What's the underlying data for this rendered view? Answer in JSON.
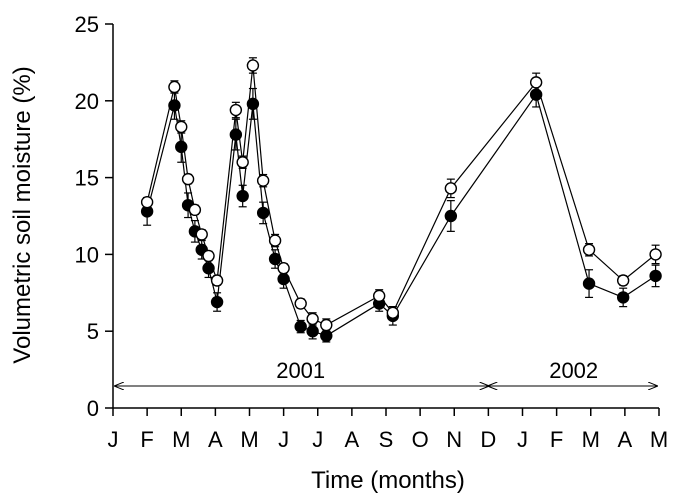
{
  "chart_data": {
    "type": "line",
    "title": "",
    "xlabel": "Time (months)",
    "ylabel": "Volumetric soil moisture (%)",
    "ylim": [
      0,
      25
    ],
    "yticks": [
      0,
      5,
      10,
      15,
      20,
      25
    ],
    "month_ticks": [
      "J",
      "F",
      "M",
      "A",
      "M",
      "J",
      "J",
      "A",
      "S",
      "O",
      "N",
      "D",
      "J",
      "F",
      "M",
      "A",
      "M"
    ],
    "year_labels": [
      "2001",
      "2002"
    ],
    "series": [
      {
        "marker": "open-circle",
        "points": [
          {
            "x": 1.0,
            "y": 13.4,
            "err": 0.3
          },
          {
            "x": 1.8,
            "y": 20.9,
            "err": 0.4
          },
          {
            "x": 2.0,
            "y": 18.3,
            "err": 0.4
          },
          {
            "x": 2.2,
            "y": 14.9,
            "err": 0.3
          },
          {
            "x": 2.4,
            "y": 12.9,
            "err": 0.3
          },
          {
            "x": 2.6,
            "y": 11.3,
            "err": 0.3
          },
          {
            "x": 2.8,
            "y": 9.9,
            "err": 0.3
          },
          {
            "x": 3.05,
            "y": 8.3,
            "err": 0.3
          },
          {
            "x": 3.6,
            "y": 19.4,
            "err": 0.5
          },
          {
            "x": 3.8,
            "y": 16.0,
            "err": 0.4
          },
          {
            "x": 4.1,
            "y": 22.3,
            "err": 0.5
          },
          {
            "x": 4.4,
            "y": 14.8,
            "err": 0.4
          },
          {
            "x": 4.75,
            "y": 10.9,
            "err": 0.4
          },
          {
            "x": 5.0,
            "y": 9.1,
            "err": 0.3
          },
          {
            "x": 5.5,
            "y": 6.8,
            "err": 0.3
          },
          {
            "x": 5.85,
            "y": 5.8,
            "err": 0.4
          },
          {
            "x": 6.25,
            "y": 5.4,
            "err": 0.4
          },
          {
            "x": 7.8,
            "y": 7.3,
            "err": 0.4
          },
          {
            "x": 8.2,
            "y": 6.2,
            "err": 0.4
          },
          {
            "x": 9.9,
            "y": 14.3,
            "err": 0.6
          },
          {
            "x": 12.4,
            "y": 21.2,
            "err": 0.6
          },
          {
            "x": 13.95,
            "y": 10.3,
            "err": 0.4
          },
          {
            "x": 14.95,
            "y": 8.3,
            "err": 0.3
          },
          {
            "x": 15.9,
            "y": 10.0,
            "err": 0.6
          }
        ]
      },
      {
        "marker": "filled-circle",
        "points": [
          {
            "x": 1.0,
            "y": 12.8,
            "err": 0.9
          },
          {
            "x": 1.8,
            "y": 19.7,
            "err": 0.9
          },
          {
            "x": 2.0,
            "y": 17.0,
            "err": 1.0
          },
          {
            "x": 2.2,
            "y": 13.2,
            "err": 0.8
          },
          {
            "x": 2.4,
            "y": 11.5,
            "err": 0.7
          },
          {
            "x": 2.6,
            "y": 10.3,
            "err": 0.6
          },
          {
            "x": 2.8,
            "y": 9.1,
            "err": 0.6
          },
          {
            "x": 3.05,
            "y": 6.9,
            "err": 0.6
          },
          {
            "x": 3.6,
            "y": 17.8,
            "err": 1.0
          },
          {
            "x": 3.8,
            "y": 13.8,
            "err": 0.7
          },
          {
            "x": 4.1,
            "y": 19.8,
            "err": 1.0
          },
          {
            "x": 4.4,
            "y": 12.7,
            "err": 0.7
          },
          {
            "x": 4.75,
            "y": 9.7,
            "err": 0.6
          },
          {
            "x": 5.0,
            "y": 8.4,
            "err": 0.6
          },
          {
            "x": 5.5,
            "y": 5.3,
            "err": 0.4
          },
          {
            "x": 5.85,
            "y": 5.0,
            "err": 0.5
          },
          {
            "x": 6.25,
            "y": 4.7,
            "err": 0.4
          },
          {
            "x": 7.8,
            "y": 6.8,
            "err": 0.5
          },
          {
            "x": 8.2,
            "y": 6.0,
            "err": 0.6
          },
          {
            "x": 9.9,
            "y": 12.5,
            "err": 1.0
          },
          {
            "x": 12.4,
            "y": 20.4,
            "err": 0.8
          },
          {
            "x": 13.95,
            "y": 8.1,
            "err": 0.9
          },
          {
            "x": 14.95,
            "y": 7.2,
            "err": 0.6
          },
          {
            "x": 15.9,
            "y": 8.6,
            "err": 0.7
          }
        ]
      }
    ]
  }
}
